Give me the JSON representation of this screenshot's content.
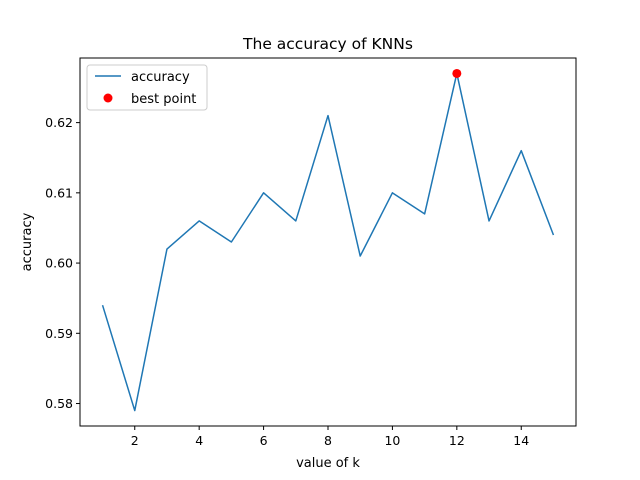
{
  "chart_data": {
    "type": "line",
    "title": "The accuracy of KNNs",
    "xlabel": "value of k",
    "ylabel": "accuracy",
    "xlim": [
      0.3,
      15.7
    ],
    "ylim": [
      0.5768,
      0.6292
    ],
    "xticks": [
      2,
      4,
      6,
      8,
      10,
      12,
      14
    ],
    "yticks": [
      0.58,
      0.59,
      0.6,
      0.61,
      0.62
    ],
    "ytick_labels": [
      "0.58",
      "0.59",
      "0.60",
      "0.61",
      "0.62"
    ],
    "x": [
      1,
      2,
      3,
      4,
      5,
      6,
      7,
      8,
      9,
      10,
      11,
      12,
      13,
      14,
      15
    ],
    "series": [
      {
        "name": "accuracy",
        "color": "#1f77b4",
        "values": [
          0.594,
          0.579,
          0.602,
          0.606,
          0.603,
          0.61,
          0.606,
          0.621,
          0.601,
          0.61,
          0.607,
          0.627,
          0.606,
          0.616,
          0.604
        ]
      }
    ],
    "best_point": {
      "name": "best point",
      "x": 12,
      "y": 0.627,
      "color": "#ff0000"
    },
    "legend": "top-left",
    "grid": false
  }
}
